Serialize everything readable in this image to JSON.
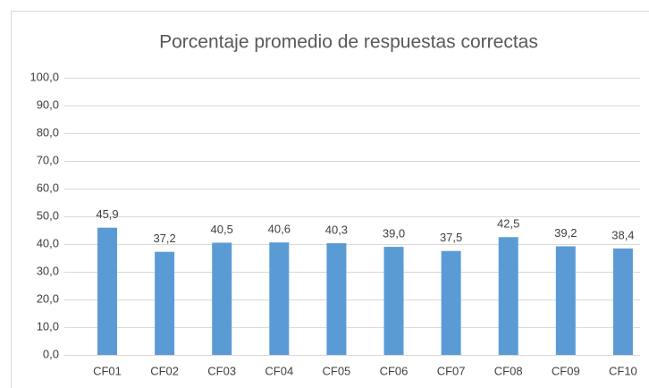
{
  "chart_data": {
    "type": "bar",
    "title": "Porcentaje promedio de respuestas correctas",
    "categories": [
      "CF01",
      "CF02",
      "CF03",
      "CF04",
      "CF05",
      "CF06",
      "CF07",
      "CF08",
      "CF09",
      "CF10"
    ],
    "values": [
      45.9,
      37.2,
      40.5,
      40.6,
      40.3,
      39.0,
      37.5,
      42.5,
      39.2,
      38.4
    ],
    "value_labels": [
      "45,9",
      "37,2",
      "40,5",
      "40,6",
      "40,3",
      "39,0",
      "37,5",
      "42,5",
      "39,2",
      "38,4"
    ],
    "color": "#5b9bd5",
    "ylim": [
      0,
      100
    ],
    "yticks": [
      {
        "value": 0,
        "label": "0,0"
      },
      {
        "value": 10,
        "label": "10,0"
      },
      {
        "value": 20,
        "label": "20,0"
      },
      {
        "value": 30,
        "label": "30,0"
      },
      {
        "value": 40,
        "label": "40,0"
      },
      {
        "value": 50,
        "label": "50,0"
      },
      {
        "value": 60,
        "label": "60,0"
      },
      {
        "value": 70,
        "label": "70,0"
      },
      {
        "value": 80,
        "label": "80,0"
      },
      {
        "value": 90,
        "label": "90,0"
      },
      {
        "value": 100,
        "label": "100,0"
      }
    ],
    "grid": true
  }
}
